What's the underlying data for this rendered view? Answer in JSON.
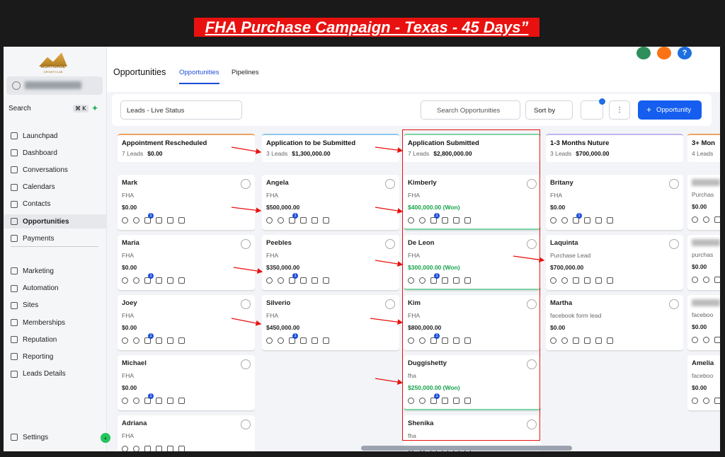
{
  "banner": {
    "title": "FHA Purchase Campaign - Texas - 45 Days”"
  },
  "sidebar": {
    "brand": "MORTGAGE",
    "brand_sub": "GROWTH LAB",
    "search": "Search",
    "shortcut": "⌘ K",
    "nav": [
      "Launchpad",
      "Dashboard",
      "Conversations",
      "Calendars",
      "Contacts",
      "Opportunities",
      "Payments",
      "Marketing",
      "Automation",
      "Sites",
      "Memberships",
      "Reputation",
      "Reporting",
      "Leads Details"
    ],
    "active": "Opportunities",
    "settings": "Settings"
  },
  "header": {
    "title": "Opportunities",
    "tabs": [
      "Opportunities",
      "Pipelines"
    ],
    "help": "?"
  },
  "toolbar": {
    "pipeline": "Leads - Live Status",
    "search": "Search Opportunities",
    "sort": "Sort by",
    "add": "Opportunity"
  },
  "columns": [
    {
      "name": "Appointment Rescheduled",
      "count": "7 Leads",
      "total": "$0.00",
      "color": "#f0a35e",
      "cards": [
        {
          "name": "Mark",
          "source": "FHA",
          "value": "$0.00",
          "badge": "1"
        },
        {
          "name": "Maria",
          "source": "FHA",
          "value": "$0.00",
          "badge": "1"
        },
        {
          "name": "Joey",
          "source": "FHA",
          "value": "$0.00",
          "badge": "1"
        },
        {
          "name": "Michael",
          "source": "FHA",
          "value": "$0.00",
          "badge": "1"
        },
        {
          "name": "Adriana",
          "source": "FHA"
        }
      ]
    },
    {
      "name": "Application to be Submitted",
      "count": "3 Leads",
      "total": "$1,300,000.00",
      "color": "#8fc7f0",
      "cards": [
        {
          "name": "Angela",
          "source": "FHA",
          "value": "$500,000.00",
          "badge": "1"
        },
        {
          "name": "Peebles",
          "source": "FHA",
          "value": "$350,000.00",
          "badge": "1"
        },
        {
          "name": "Silverio",
          "source": "FHA",
          "value": "$450,000.00",
          "badge": "1"
        }
      ]
    },
    {
      "name": "Application Submitted",
      "count": "7 Leads",
      "total": "$2,800,000.00",
      "color": "#7fd3a6",
      "cards": [
        {
          "name": "Kimberly",
          "source": "FHA",
          "value": "$400,000.00 (Won)",
          "won": true,
          "badge": "1"
        },
        {
          "name": "De Leon",
          "source": "FHA",
          "value": "$300,000.00 (Won)",
          "won": true,
          "badge": "1"
        },
        {
          "name": "Kim",
          "source": "FHA",
          "value": "$800,000.00",
          "badge": "1"
        },
        {
          "name": "Duggishetty",
          "source": "fha",
          "value": "$250,000.00 (Won)",
          "won": true,
          "badge": "1"
        },
        {
          "name": "Shenika",
          "source": "fha"
        }
      ]
    },
    {
      "name": "1-3 Months Nuture",
      "count": "3 Leads",
      "total": "$700,000.00",
      "color": "#c2b5f0",
      "cards": [
        {
          "name": "Britany",
          "source": "FHA",
          "value": "$0.00",
          "badge": "1"
        },
        {
          "name": "Laquinta",
          "source": "Purchase Lead",
          "value": "$700,000.00"
        },
        {
          "name": "Martha",
          "source": "facebook form lead",
          "value": "$0.00"
        }
      ]
    },
    {
      "name": "3+ Mon",
      "count": "4 Leads",
      "color": "#f0a35e",
      "cards": [
        {
          "source": "Purchas",
          "value": "$0.00"
        },
        {
          "source": "purchas",
          "value": "$0.00"
        },
        {
          "source": "faceboo",
          "value": "$0.00"
        },
        {
          "name": "Amelia",
          "source": "faceboo",
          "value": "$0.00"
        }
      ]
    }
  ]
}
